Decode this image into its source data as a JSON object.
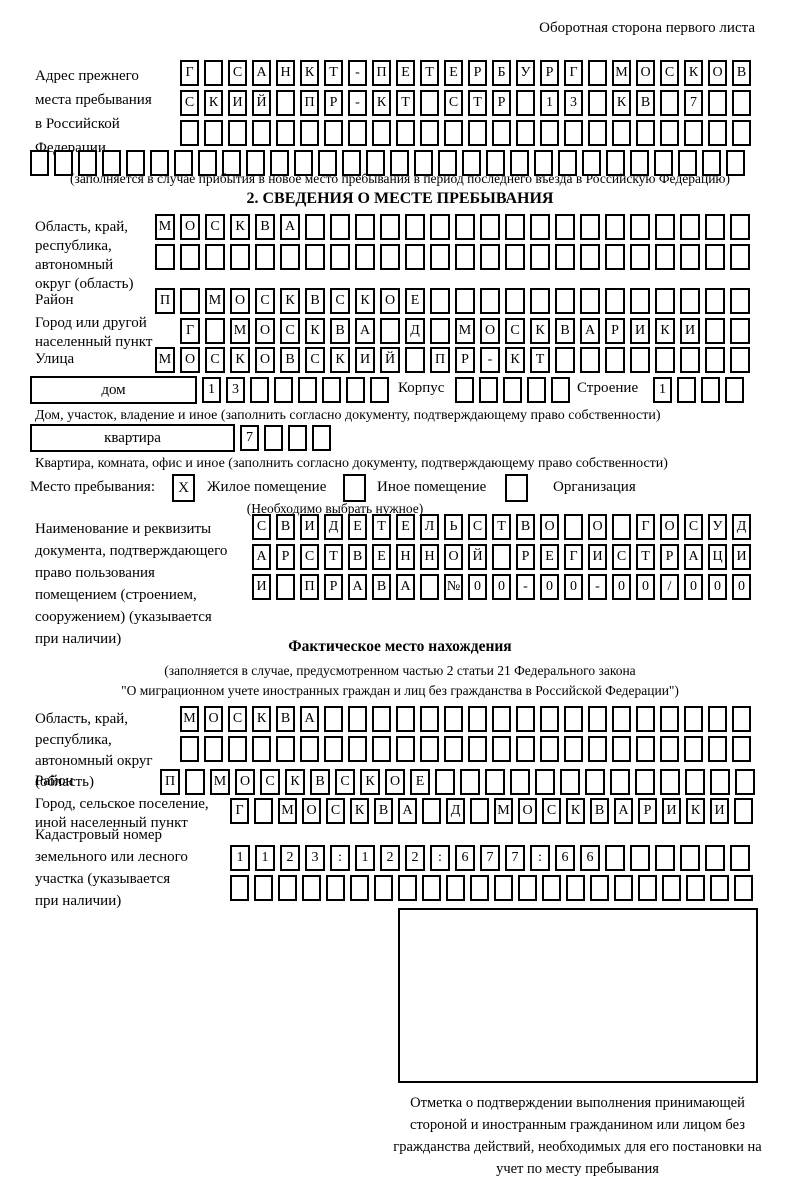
{
  "page_title": "Оборотная сторона первого листа",
  "colors": {
    "ink": "#000000",
    "paper": "#ffffff"
  },
  "prev_address": {
    "label": "Адрес прежнего\nместа пребывания\nв Российской\nФедерации",
    "rows": [
      {
        "chars": "Г САНКТ-ПЕТЕРБУРГ МОСКОВ",
        "len": 24
      },
      {
        "chars": "СКИЙ ПР-КТ СТР 13 КВ 7",
        "len": 24
      },
      {
        "chars": "",
        "len": 24
      }
    ],
    "overflow_row": {
      "chars": "",
      "len": 30
    },
    "note": "(заполняется в случае прибытия в новое место пребывания в период последнего въезда в Российскую Федерацию)"
  },
  "section2": {
    "title": "2. СВЕДЕНИЯ О МЕСТЕ ПРЕБЫВАНИЯ",
    "region": {
      "label": "Область, край,\nреспублика,\nавтономный\nокруг (область)",
      "rows": [
        {
          "chars": "МОСКВА",
          "len": 24
        },
        {
          "chars": "",
          "len": 24
        }
      ]
    },
    "district": {
      "label": "Район",
      "row": {
        "chars": "П МОСКВСКОЕ",
        "len": 24
      }
    },
    "city": {
      "label": "Город или другой\nнаселенный пункт",
      "row": {
        "chars": "Г МОСКВА Д МОСКВАРИКИ",
        "len": 23
      }
    },
    "street": {
      "label": "Улица",
      "row": {
        "chars": "МОСКОВСКИЙ ПР-КТ",
        "len": 24
      }
    },
    "house": {
      "box_label": "дом",
      "row": {
        "chars": "13",
        "len": 8
      },
      "korpus_label": "Корпус",
      "korpus_row": {
        "chars": "",
        "len": 5
      },
      "stroenie_label": "Строение",
      "stroenie_row": {
        "chars": "1",
        "len": 4
      },
      "note": "Дом, участок, владение и иное (заполнить согласно документу, подтверждающему право собственности)"
    },
    "apartment": {
      "box_label": "квартира",
      "row": {
        "chars": "7",
        "len": 4
      },
      "note": "Квартира, комната, офис и иное (заполнить согласно документу, подтверждающему право собственности)"
    },
    "stay_type": {
      "label": "Место пребывания:",
      "options": [
        {
          "label": "Жилое помещение",
          "value": "X"
        },
        {
          "label": "Иное помещение",
          "value": ""
        },
        {
          "label": "Организация",
          "value": ""
        }
      ],
      "note": "(Необходимо выбрать нужное)"
    },
    "document": {
      "label": "Наименование и реквизиты\nдокумента, подтверждающего\nправо пользования\nпомещением (строением,\nсооружением) (указывается\nпри наличии)",
      "rows": [
        {
          "chars": "СВИДЕТЕЛЬСТВО О ГОСУД",
          "len": 21
        },
        {
          "chars": "АРСТВЕННОЙ РЕГИСТРАЦИ",
          "len": 21
        },
        {
          "chars": "И ПРАВА №00-00-00/000",
          "len": 21
        }
      ]
    }
  },
  "actual_location": {
    "title": "Фактическое место нахождения",
    "note_line1": "(заполняется в случае, предусмотренном частью 2 статьи 21 Федерального закона",
    "note_line2": "\"О миграционном учете иностранных граждан и лиц без гражданства в Российской Федерации\")",
    "region": {
      "label": "Область, край,\nреспублика,\nавтономный округ\n(область)",
      "rows": [
        {
          "chars": "МОСКВА",
          "len": 24
        },
        {
          "chars": "",
          "len": 24
        }
      ]
    },
    "district": {
      "label": "Район",
      "row": {
        "chars": "П МОСКВСКОЕ",
        "len": 24
      }
    },
    "city": {
      "label": "Город, сельское поселение,\nиной населенный пункт",
      "row": {
        "chars": "Г МОСКВА Д МОСКВАРИКИ",
        "len": 22
      }
    },
    "cadastral": {
      "label": "Кадастровый номер\nземельного или лесного\nучастка (указывается\nпри наличии)",
      "rows": [
        {
          "chars": "1123:122:677:66",
          "len": 21
        },
        {
          "chars": "",
          "len": 22
        }
      ]
    }
  },
  "stamp": {
    "caption": "Отметка о подтверждении выполнения принимающей стороной и иностранным гражданином или лицом без гражданства действий, необходимых для его постановки на учет по месту пребывания"
  }
}
